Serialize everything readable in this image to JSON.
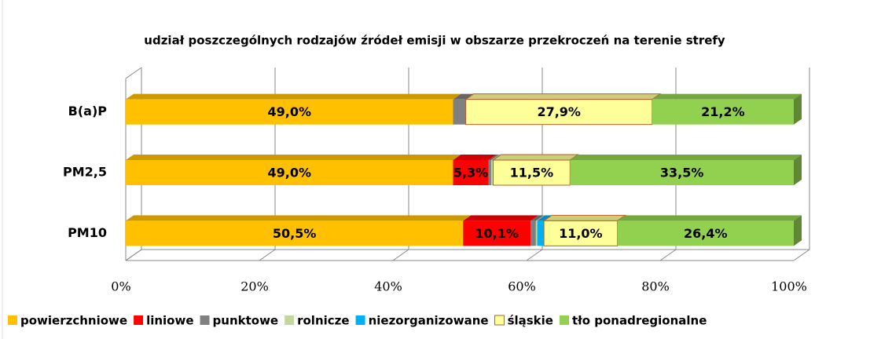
{
  "chart_data": {
    "type": "bar",
    "orientation": "horizontal",
    "stacked": true,
    "title": "udział poszczególnych rodzajów źródeł emisji w obszarze przekroczeń na terenie strefy",
    "categories": [
      "B(a)P",
      "PM2,5",
      "PM10"
    ],
    "series": [
      {
        "name": "powierzchniowe",
        "color": "#FFC000",
        "values": [
          49.0,
          49.0,
          50.5
        ],
        "value_labels": [
          "49,0%",
          "49,0%",
          "50,5%"
        ]
      },
      {
        "name": "liniowe",
        "color": "#FF0000",
        "values": [
          0,
          5.3,
          10.1
        ],
        "value_labels": [
          null,
          "5,3%",
          "10,1%"
        ]
      },
      {
        "name": "punktowe",
        "color": "#808080",
        "values": [
          1.9,
          0.4,
          0.8
        ]
      },
      {
        "name": "rolnicze",
        "color": "#C4D79B",
        "values": [
          0,
          0.3,
          0.2
        ]
      },
      {
        "name": "niezorganizowane",
        "color": "#00B0F0",
        "values": [
          0,
          0,
          1.0
        ]
      },
      {
        "name": "śląskie",
        "color": "#FFFF99",
        "values": [
          27.9,
          11.5,
          11.0
        ],
        "value_labels": [
          "27,9%",
          "11,5%",
          "11,0%"
        ]
      },
      {
        "name": "tło ponadregionalne",
        "color": "#92D050",
        "values": [
          21.2,
          33.5,
          26.4
        ],
        "value_labels": [
          "21,2%",
          "33,5%",
          "26,4%"
        ]
      }
    ],
    "xlim": [
      0,
      100
    ],
    "xticks": [
      {
        "value": 0,
        "label": "0%"
      },
      {
        "value": 20,
        "label": "20%"
      },
      {
        "value": 40,
        "label": "40%"
      },
      {
        "value": 60,
        "label": "60%"
      },
      {
        "value": 80,
        "label": "80%"
      },
      {
        "value": 100,
        "label": "100%"
      }
    ],
    "grid": true,
    "legend": "bottom"
  }
}
